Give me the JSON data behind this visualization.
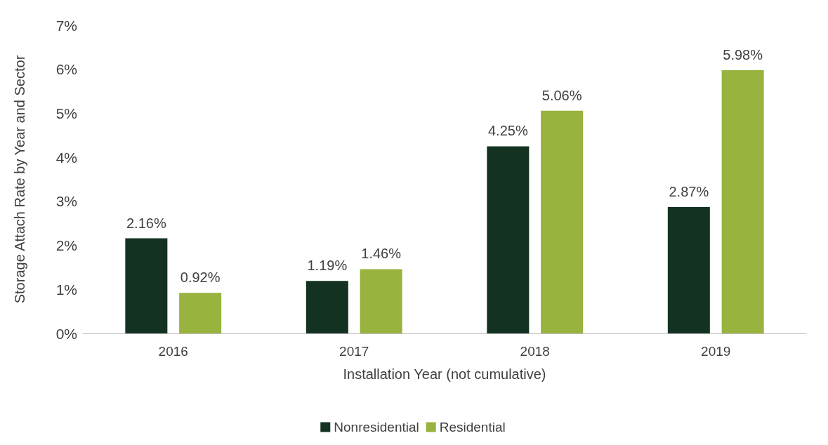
{
  "chart_data": {
    "type": "bar",
    "xlabel": "Installation Year (not cumulative)",
    "ylabel": "Storage Attach Rate by Year and Sector",
    "categories": [
      "2016",
      "2017",
      "2018",
      "2019"
    ],
    "series": [
      {
        "name": "Nonresidential",
        "color": "#133222",
        "values": [
          2.16,
          1.19,
          4.25,
          2.87
        ],
        "value_labels": [
          "2.16%",
          "1.19%",
          "4.25%",
          "2.87%"
        ]
      },
      {
        "name": "Residential",
        "color": "#98b33e",
        "values": [
          0.92,
          1.46,
          5.06,
          5.98
        ],
        "value_labels": [
          "0.92%",
          "1.46%",
          "5.06%",
          "5.98%"
        ]
      }
    ],
    "ylim": [
      0,
      7
    ],
    "yticks": [
      {
        "value": 0,
        "label": "0%"
      },
      {
        "value": 1,
        "label": "1%"
      },
      {
        "value": 2,
        "label": "2%"
      },
      {
        "value": 3,
        "label": "3%"
      },
      {
        "value": 4,
        "label": "4%"
      },
      {
        "value": 5,
        "label": "5%"
      },
      {
        "value": 6,
        "label": "6%"
      },
      {
        "value": 7,
        "label": "7%"
      }
    ],
    "grid": false,
    "legend": "bottom"
  }
}
